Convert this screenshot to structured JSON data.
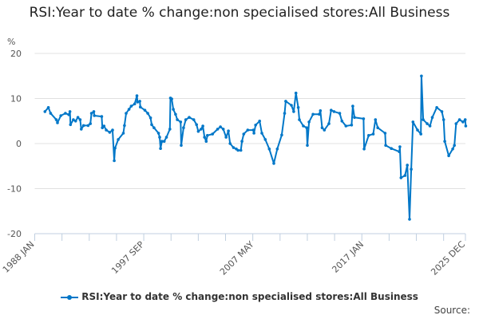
{
  "chart_data": {
    "type": "line",
    "title": "RSI:Year to date % change:non specialised stores:All Business",
    "ylabel": "%",
    "xlabel": "",
    "ylim": [
      -20,
      20
    ],
    "xlim": [
      1988.0,
      2025.92
    ],
    "yticks": [
      "20",
      "10",
      "0",
      "-10",
      "-20"
    ],
    "ytick_values": [
      20,
      10,
      0,
      -10,
      -20
    ],
    "xtick_labels": [
      "1988 JAN",
      "1997 SEP",
      "2007 MAY",
      "2017 JAN",
      "2025 DEC"
    ],
    "xtick_values": [
      1988.0,
      1997.67,
      2007.33,
      2017.0,
      2025.92
    ],
    "grid": true,
    "legend_position": "bottom",
    "color": "#0077c8",
    "series": [
      {
        "name": "RSI:Year to date % change:non specialised stores:All Business",
        "points": [
          [
            1988.9,
            7.1
          ],
          [
            1989.2,
            8.0
          ],
          [
            1989.4,
            6.7
          ],
          [
            1989.9,
            5.3
          ],
          [
            1990.0,
            4.6
          ],
          [
            1990.3,
            6.2
          ],
          [
            1990.7,
            6.7
          ],
          [
            1991.0,
            6.4
          ],
          [
            1991.1,
            7.1
          ],
          [
            1991.15,
            4.2
          ],
          [
            1991.4,
            5.3
          ],
          [
            1991.6,
            5.0
          ],
          [
            1991.8,
            5.8
          ],
          [
            1992.0,
            5.3
          ],
          [
            1992.1,
            3.2
          ],
          [
            1992.3,
            4.0
          ],
          [
            1992.7,
            4.0
          ],
          [
            1992.9,
            4.4
          ],
          [
            1993.0,
            6.7
          ],
          [
            1993.2,
            7.1
          ],
          [
            1993.25,
            6.2
          ],
          [
            1993.9,
            6.0
          ],
          [
            1993.95,
            3.5
          ],
          [
            1994.1,
            3.9
          ],
          [
            1994.3,
            3.0
          ],
          [
            1994.6,
            2.5
          ],
          [
            1994.85,
            3.0
          ],
          [
            1995.0,
            -3.8
          ],
          [
            1995.07,
            -1.0
          ],
          [
            1995.35,
            0.9
          ],
          [
            1995.8,
            2.3
          ],
          [
            1995.9,
            4.0
          ],
          [
            1996.05,
            6.7
          ],
          [
            1996.3,
            7.6
          ],
          [
            1996.5,
            8.3
          ],
          [
            1996.8,
            8.8
          ],
          [
            1997.0,
            10.6
          ],
          [
            1997.05,
            9.2
          ],
          [
            1997.25,
            9.4
          ],
          [
            1997.3,
            8.1
          ],
          [
            1997.7,
            7.4
          ],
          [
            1997.95,
            6.7
          ],
          [
            1998.2,
            5.7
          ],
          [
            1998.3,
            4.2
          ],
          [
            1998.5,
            3.5
          ],
          [
            1998.9,
            2.3
          ],
          [
            1999.0,
            1.4
          ],
          [
            1999.08,
            -1.1
          ],
          [
            1999.2,
            0.5
          ],
          [
            1999.4,
            0.5
          ],
          [
            1999.6,
            1.4
          ],
          [
            1999.9,
            3.2
          ],
          [
            1999.95,
            10.1
          ],
          [
            2000.06,
            9.9
          ],
          [
            2000.2,
            7.6
          ],
          [
            2000.4,
            6.5
          ],
          [
            2000.55,
            5.3
          ],
          [
            2000.85,
            4.8
          ],
          [
            2000.9,
            -0.4
          ],
          [
            2001.1,
            3.5
          ],
          [
            2001.3,
            5.3
          ],
          [
            2001.6,
            5.8
          ],
          [
            2002.0,
            5.3
          ],
          [
            2002.25,
            4.2
          ],
          [
            2002.4,
            2.7
          ],
          [
            2002.65,
            3.2
          ],
          [
            2002.8,
            3.9
          ],
          [
            2002.95,
            1.4
          ],
          [
            2003.1,
            0.5
          ],
          [
            2003.2,
            1.8
          ],
          [
            2003.65,
            2.1
          ],
          [
            2004.1,
            3.2
          ],
          [
            2004.35,
            3.7
          ],
          [
            2004.6,
            3.2
          ],
          [
            2004.85,
            1.4
          ],
          [
            2005.05,
            2.8
          ],
          [
            2005.2,
            0.0
          ],
          [
            2005.5,
            -0.9
          ],
          [
            2005.75,
            -1.2
          ],
          [
            2005.9,
            -1.5
          ],
          [
            2006.15,
            -1.5
          ],
          [
            2006.25,
            0.5
          ],
          [
            2006.4,
            2.1
          ],
          [
            2006.75,
            3.0
          ],
          [
            2007.25,
            3.0
          ],
          [
            2007.3,
            2.3
          ],
          [
            2007.45,
            4.1
          ],
          [
            2007.8,
            5.0
          ],
          [
            2008.0,
            2.3
          ],
          [
            2008.3,
            0.9
          ],
          [
            2008.65,
            -1.2
          ],
          [
            2009.05,
            -4.4
          ],
          [
            2009.35,
            -1.2
          ],
          [
            2009.75,
            1.9
          ],
          [
            2010.0,
            6.7
          ],
          [
            2010.1,
            9.4
          ],
          [
            2010.6,
            8.5
          ],
          [
            2010.8,
            7.1
          ],
          [
            2011.0,
            11.2
          ],
          [
            2011.2,
            8.0
          ],
          [
            2011.3,
            5.3
          ],
          [
            2011.65,
            3.9
          ],
          [
            2011.95,
            3.5
          ],
          [
            2012.0,
            -0.4
          ],
          [
            2012.15,
            4.8
          ],
          [
            2012.5,
            6.5
          ],
          [
            2013.05,
            6.5
          ],
          [
            2013.15,
            7.3
          ],
          [
            2013.3,
            3.5
          ],
          [
            2013.5,
            3.0
          ],
          [
            2013.9,
            4.4
          ],
          [
            2014.1,
            7.4
          ],
          [
            2014.35,
            7.1
          ],
          [
            2014.85,
            6.7
          ],
          [
            2015.05,
            5.0
          ],
          [
            2015.4,
            3.9
          ],
          [
            2015.9,
            4.1
          ],
          [
            2016.0,
            8.3
          ],
          [
            2016.15,
            5.8
          ],
          [
            2016.95,
            5.5
          ],
          [
            2017.0,
            -1.2
          ],
          [
            2017.4,
            1.8
          ],
          [
            2017.8,
            2.1
          ],
          [
            2018.0,
            5.3
          ],
          [
            2018.2,
            3.5
          ],
          [
            2018.85,
            2.3
          ],
          [
            2018.9,
            -0.4
          ],
          [
            2019.4,
            -1.1
          ],
          [
            2020.1,
            -1.8
          ],
          [
            2020.15,
            -0.7
          ],
          [
            2020.25,
            -7.6
          ],
          [
            2020.6,
            -7.1
          ],
          [
            2020.8,
            -4.8
          ],
          [
            2021.0,
            -16.8
          ],
          [
            2021.15,
            -5.7
          ],
          [
            2021.3,
            4.8
          ],
          [
            2021.7,
            3.0
          ],
          [
            2022.0,
            2.1
          ],
          [
            2022.05,
            15.0
          ],
          [
            2022.2,
            5.3
          ],
          [
            2022.55,
            4.4
          ],
          [
            2022.8,
            3.9
          ],
          [
            2023.0,
            5.8
          ],
          [
            2023.4,
            8.0
          ],
          [
            2023.85,
            7.1
          ],
          [
            2024.0,
            5.3
          ],
          [
            2024.1,
            0.5
          ],
          [
            2024.45,
            -2.7
          ],
          [
            2024.8,
            -1.2
          ],
          [
            2024.95,
            -0.4
          ],
          [
            2025.1,
            4.4
          ],
          [
            2025.4,
            5.3
          ],
          [
            2025.7,
            4.8
          ],
          [
            2025.9,
            5.3
          ],
          [
            2025.95,
            3.9
          ]
        ]
      }
    ],
    "source_label": "Source:"
  }
}
